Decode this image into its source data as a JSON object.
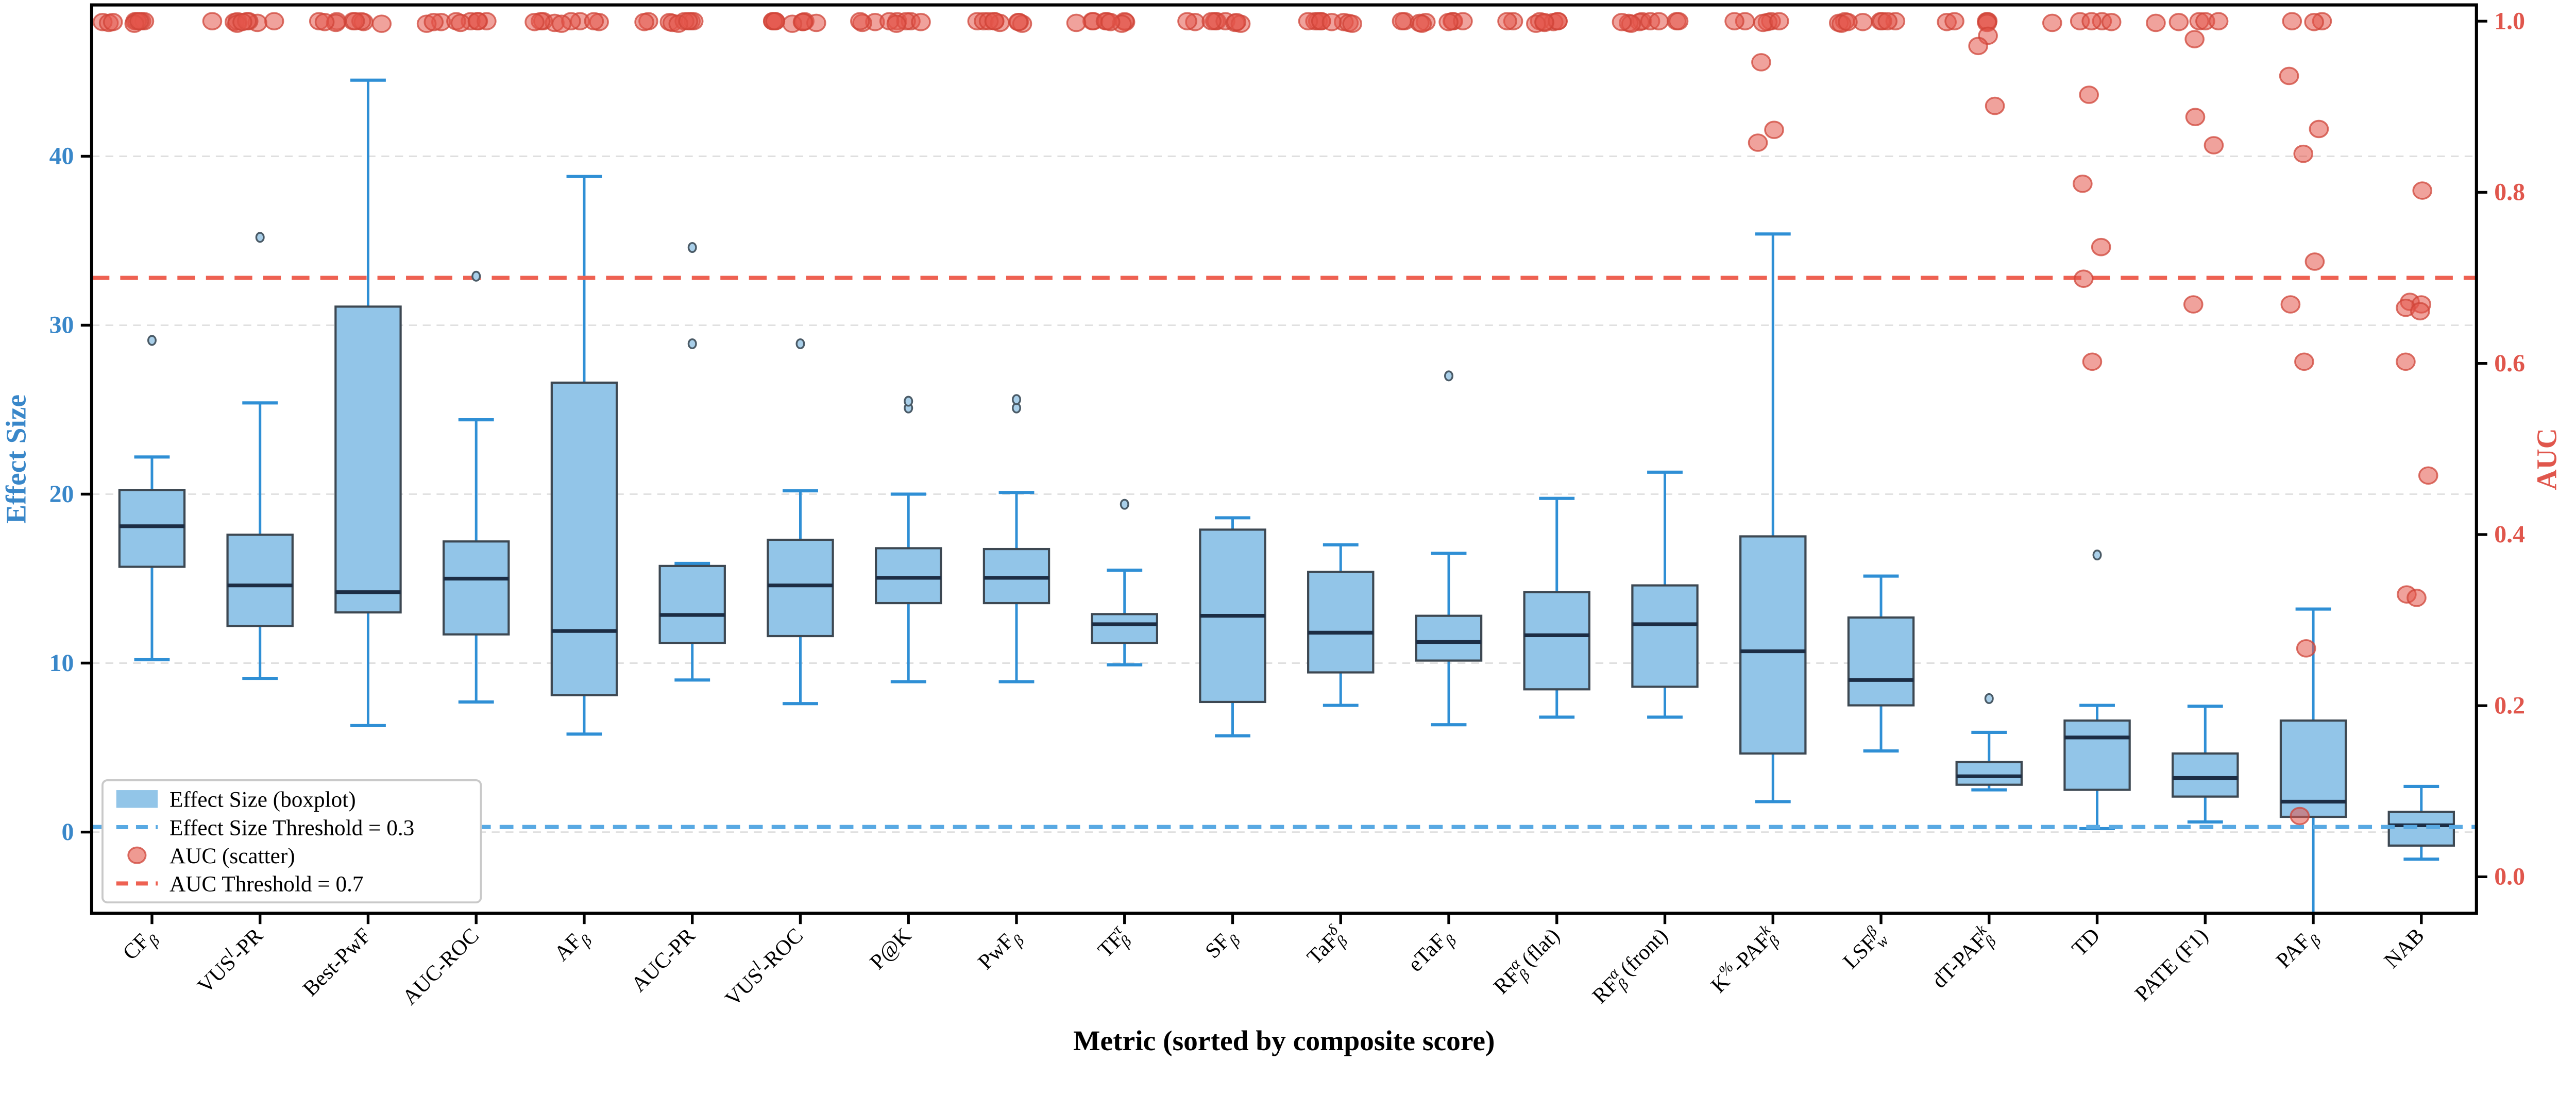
{
  "figure": {
    "xlabel": "Metric (sorted by composite score)",
    "ylabel_left": "Effect Size",
    "ylabel_right": "AUC"
  },
  "chart_data": {
    "type": "boxplot+scatter",
    "title": "",
    "xlabel": "Metric (sorted by composite score)",
    "ylabel_left": "Effect Size",
    "ylabel_right": "AUC",
    "grid": "horizontal-dashed",
    "left_axis": {
      "ticks": [
        0,
        10,
        20,
        30,
        40
      ],
      "range_hint": [
        -5.4,
        49.0
      ],
      "color": "#3987c9"
    },
    "right_axis": {
      "tick_labels": [
        "0.0",
        "0.2",
        "0.4",
        "0.6",
        "0.8",
        "1.0"
      ],
      "ticks": [
        0.0,
        0.2,
        0.4,
        0.6,
        0.8,
        1.0
      ],
      "color": "#e0564c"
    },
    "thresholds": {
      "effect_size": {
        "value": 0.3,
        "label": "Effect Size Threshold = 0.3",
        "color": "#58a9e3"
      },
      "auc": {
        "value": 0.7,
        "label": "AUC Threshold = 0.7",
        "color": "#ee6152"
      }
    },
    "legend": {
      "position": "lower-left",
      "entries": [
        {
          "type": "patch",
          "label": "Effect Size (boxplot)"
        },
        {
          "type": "dashed-line-blue",
          "label": "Effect Size Threshold = 0.3"
        },
        {
          "type": "dot-red",
          "label": "AUC (scatter)"
        },
        {
          "type": "dashed-line-red",
          "label": "AUC Threshold = 0.7"
        }
      ]
    },
    "categories": [
      {
        "plain": "CFβ",
        "segments": [
          [
            "n",
            "CF"
          ],
          [
            "d",
            "β"
          ]
        ]
      },
      {
        "plain": "VUSl-PR",
        "segments": [
          [
            "n",
            "VUS"
          ],
          [
            "u",
            "l"
          ],
          [
            "n",
            "-PR"
          ]
        ]
      },
      {
        "plain": "Best-PwF",
        "segments": [
          [
            "n",
            "Best-PwF"
          ]
        ]
      },
      {
        "plain": "AUC-ROC",
        "segments": [
          [
            "n",
            "AUC-ROC"
          ]
        ]
      },
      {
        "plain": "AFβ",
        "segments": [
          [
            "n",
            "AF"
          ],
          [
            "d",
            "β"
          ]
        ]
      },
      {
        "plain": "AUC-PR",
        "segments": [
          [
            "n",
            "AUC-PR"
          ]
        ]
      },
      {
        "plain": "VUSl-ROC",
        "segments": [
          [
            "n",
            "VUS"
          ],
          [
            "u",
            "l"
          ],
          [
            "n",
            "-ROC"
          ]
        ]
      },
      {
        "plain": "P@K",
        "segments": [
          [
            "n",
            "P@K"
          ]
        ]
      },
      {
        "plain": "PwFβ",
        "segments": [
          [
            "n",
            "PwF"
          ],
          [
            "d",
            "β"
          ]
        ]
      },
      {
        "plain": "TFτβ",
        "segments": [
          [
            "n",
            "TF"
          ],
          [
            "u",
            "τ"
          ],
          [
            "d",
            "β"
          ]
        ]
      },
      {
        "plain": "SFβ",
        "segments": [
          [
            "n",
            "SF"
          ],
          [
            "d",
            "β"
          ]
        ]
      },
      {
        "plain": "TaFδβ",
        "segments": [
          [
            "n",
            "TaF"
          ],
          [
            "u",
            "δ"
          ],
          [
            "d",
            "β"
          ]
        ]
      },
      {
        "plain": "eTaFβ",
        "segments": [
          [
            "n",
            "eTaF"
          ],
          [
            "d",
            "β"
          ]
        ]
      },
      {
        "plain": "RFαβ (flat)",
        "segments": [
          [
            "n",
            "RF"
          ],
          [
            "u",
            "α"
          ],
          [
            "d",
            "β"
          ],
          [
            "n",
            " (flat)"
          ]
        ]
      },
      {
        "plain": "RFαβ (front)",
        "segments": [
          [
            "n",
            "RF"
          ],
          [
            "u",
            "α"
          ],
          [
            "d",
            "β"
          ],
          [
            "n",
            " (front)"
          ]
        ]
      },
      {
        "plain": "K%-PAFkβ",
        "segments": [
          [
            "n",
            "K"
          ],
          [
            "u",
            "%"
          ],
          [
            "n",
            "-PAF"
          ],
          [
            "u",
            "k"
          ],
          [
            "d",
            "β"
          ]
        ]
      },
      {
        "plain": "LSFβw",
        "segments": [
          [
            "n",
            "LSF"
          ],
          [
            "u",
            "β"
          ],
          [
            "d",
            "w"
          ]
        ]
      },
      {
        "plain": "dT-PAFkβ",
        "segments": [
          [
            "n",
            "dT-PAF"
          ],
          [
            "u",
            "k"
          ],
          [
            "d",
            "β"
          ]
        ]
      },
      {
        "plain": "TD",
        "segments": [
          [
            "n",
            "TD"
          ]
        ]
      },
      {
        "plain": "PATE (F1)",
        "segments": [
          [
            "n",
            "PATE (F1)"
          ]
        ]
      },
      {
        "plain": "PAFβ",
        "segments": [
          [
            "n",
            "PAF"
          ],
          [
            "d",
            "β"
          ]
        ]
      },
      {
        "plain": "NAB",
        "segments": [
          [
            "n",
            "NAB"
          ]
        ]
      }
    ],
    "effect_size_boxplots": [
      {
        "lo": 10.2,
        "q1": 15.7,
        "med": 18.1,
        "q3": 20.25,
        "hi": 22.2,
        "outliers": [
          29.1
        ]
      },
      {
        "lo": 9.1,
        "q1": 12.2,
        "med": 14.6,
        "q3": 17.6,
        "hi": 25.4,
        "outliers": [
          35.2
        ]
      },
      {
        "lo": 6.3,
        "q1": 13.0,
        "med": 14.2,
        "q3": 31.1,
        "hi": 44.5,
        "outliers": []
      },
      {
        "lo": 7.7,
        "q1": 11.7,
        "med": 15.0,
        "q3": 17.2,
        "hi": 24.4,
        "outliers": [
          32.9
        ]
      },
      {
        "lo": 5.8,
        "q1": 8.1,
        "med": 11.9,
        "q3": 26.6,
        "hi": 38.8,
        "outliers": []
      },
      {
        "lo": 9.0,
        "q1": 11.2,
        "med": 12.85,
        "q3": 15.75,
        "hi": 15.9,
        "outliers": [
          34.6,
          28.9
        ]
      },
      {
        "lo": 7.6,
        "q1": 11.6,
        "med": 14.6,
        "q3": 17.3,
        "hi": 20.2,
        "outliers": [
          28.9
        ]
      },
      {
        "lo": 8.9,
        "q1": 13.55,
        "med": 15.05,
        "q3": 16.8,
        "hi": 20.0,
        "outliers": [
          25.1,
          25.5
        ]
      },
      {
        "lo": 8.9,
        "q1": 13.55,
        "med": 15.05,
        "q3": 16.75,
        "hi": 20.1,
        "outliers": [
          25.1,
          25.6
        ]
      },
      {
        "lo": 9.9,
        "q1": 11.2,
        "med": 12.3,
        "q3": 12.9,
        "hi": 15.5,
        "outliers": [
          19.4
        ]
      },
      {
        "lo": 5.7,
        "q1": 7.7,
        "med": 12.8,
        "q3": 17.9,
        "hi": 18.6,
        "outliers": []
      },
      {
        "lo": 7.5,
        "q1": 9.45,
        "med": 11.8,
        "q3": 15.4,
        "hi": 17.0,
        "outliers": []
      },
      {
        "lo": 6.35,
        "q1": 10.15,
        "med": 11.25,
        "q3": 12.8,
        "hi": 16.5,
        "outliers": [
          27.0
        ]
      },
      {
        "lo": 6.8,
        "q1": 8.45,
        "med": 11.65,
        "q3": 14.2,
        "hi": 19.75,
        "outliers": []
      },
      {
        "lo": 6.8,
        "q1": 8.6,
        "med": 12.3,
        "q3": 14.6,
        "hi": 21.3,
        "outliers": []
      },
      {
        "lo": 1.8,
        "q1": 4.65,
        "med": 10.7,
        "q3": 17.5,
        "hi": 35.4,
        "outliers": []
      },
      {
        "lo": 4.8,
        "q1": 7.5,
        "med": 9.0,
        "q3": 12.7,
        "hi": 15.15,
        "outliers": []
      },
      {
        "lo": 2.5,
        "q1": 2.8,
        "med": 3.3,
        "q3": 4.15,
        "hi": 5.9,
        "outliers": [
          7.9
        ]
      },
      {
        "lo": 0.2,
        "q1": 2.5,
        "med": 5.6,
        "q3": 6.6,
        "hi": 7.5,
        "outliers": [
          16.4
        ]
      },
      {
        "lo": 0.6,
        "q1": 2.1,
        "med": 3.2,
        "q3": 4.65,
        "hi": 7.45,
        "outliers": []
      },
      {
        "lo": -5.3,
        "q1": 0.9,
        "med": 1.8,
        "q3": 6.6,
        "hi": 13.2,
        "outliers": []
      },
      {
        "lo": -1.6,
        "q1": -0.8,
        "med": 0.4,
        "q3": 1.2,
        "hi": 2.7,
        "outliers": []
      }
    ],
    "auc_scatter": [
      [
        1.0,
        1.0,
        0.999,
        1.0,
        0.998,
        1.0,
        0.997,
        1.0,
        0.999
      ],
      [
        1.0,
        0.999,
        1.0,
        0.998,
        1.0,
        1.0,
        0.997,
        1.0,
        0.999
      ],
      [
        1.0,
        1.0,
        0.999,
        1.0,
        0.998,
        1.0,
        1.0,
        0.997,
        0.999
      ],
      [
        1.0,
        0.999,
        1.0,
        1.0,
        0.998,
        1.0,
        0.997,
        1.0,
        0.999
      ],
      [
        1.0,
        1.0,
        0.999,
        0.998,
        1.0,
        1.0,
        0.997,
        1.0,
        0.999
      ],
      [
        1.0,
        0.999,
        1.0,
        0.998,
        1.0,
        1.0,
        0.997,
        1.0,
        0.999
      ],
      [
        1.0,
        1.0,
        0.999,
        1.0,
        0.998,
        1.0,
        0.997,
        1.0,
        0.999
      ],
      [
        1.0,
        0.999,
        1.0,
        0.998,
        1.0,
        1.0,
        0.997,
        1.0,
        0.999
      ],
      [
        1.0,
        1.0,
        0.999,
        1.0,
        0.998,
        1.0,
        0.997,
        1.0,
        0.999
      ],
      [
        1.0,
        0.999,
        1.0,
        0.998,
        1.0,
        1.0,
        0.997,
        1.0,
        0.999
      ],
      [
        1.0,
        1.0,
        0.999,
        1.0,
        0.998,
        1.0,
        0.997,
        1.0,
        0.999
      ],
      [
        1.0,
        0.999,
        1.0,
        0.998,
        1.0,
        1.0,
        0.997,
        1.0,
        0.999
      ],
      [
        1.0,
        1.0,
        0.999,
        1.0,
        0.998,
        1.0,
        0.997,
        1.0,
        0.999
      ],
      [
        1.0,
        0.999,
        1.0,
        0.998,
        1.0,
        1.0,
        0.997,
        1.0,
        0.999
      ],
      [
        1.0,
        1.0,
        0.999,
        1.0,
        0.998,
        1.0,
        0.997,
        1.0,
        0.999
      ],
      [
        1.0,
        0.999,
        1.0,
        0.998,
        1.0,
        1.0,
        0.952,
        0.873,
        0.858
      ],
      [
        1.0,
        1.0,
        0.999,
        1.0,
        0.998,
        1.0,
        0.997,
        1.0,
        0.999
      ],
      [
        1.0,
        0.999,
        1.0,
        0.998,
        1.0,
        0.983,
        0.971,
        0.901
      ],
      [
        1.0,
        1.0,
        0.999,
        0.998,
        1.0,
        0.914,
        0.81,
        0.736,
        0.699,
        0.602
      ],
      [
        1.0,
        0.999,
        1.0,
        0.998,
        1.0,
        0.979,
        0.888,
        0.855,
        0.669
      ],
      [
        1.0,
        1.0,
        0.999,
        0.936,
        0.874,
        0.845,
        0.719,
        0.669,
        0.602,
        0.267,
        0.071
      ],
      [
        0.802,
        0.672,
        0.669,
        0.665,
        0.661,
        0.602,
        0.469,
        0.33,
        0.326
      ]
    ],
    "colors": {
      "box_fill": "#92c5e8",
      "box_edge": "#3d4852",
      "median": "#1c2d44",
      "whisker": "#2f8fd5",
      "outlier_fill": "#a9cfe9",
      "outlier_edge": "#4a5a66",
      "scatter_fill": "#e4564a",
      "scatter_edge": "#cf4438",
      "grid": "#dcdcdc",
      "spine": "#000000",
      "left_label": "#3987c9",
      "right_label": "#e0564c",
      "blue_threshold": "#58a9e3",
      "red_threshold": "#ee6152"
    }
  }
}
